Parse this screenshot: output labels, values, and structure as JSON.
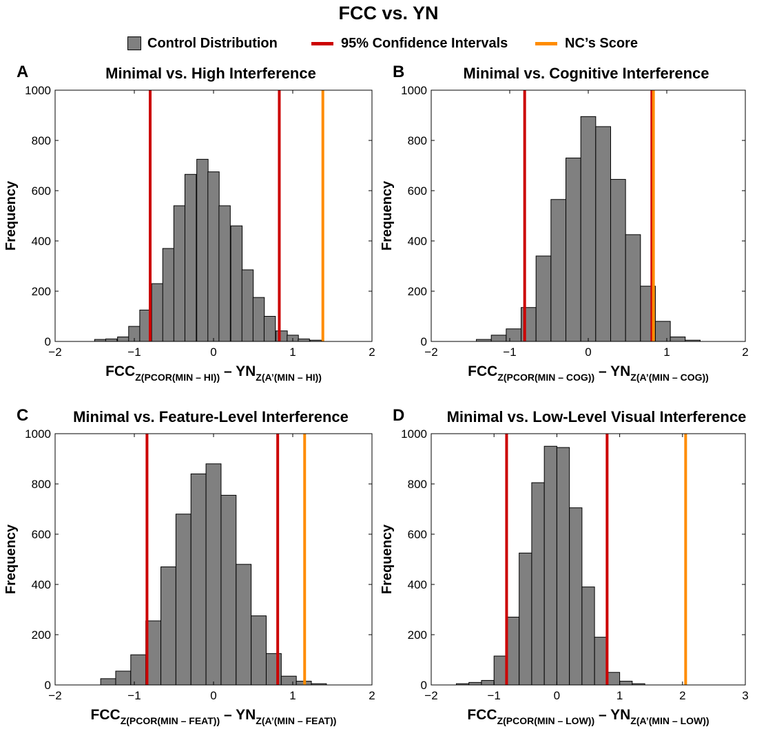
{
  "title": "FCC vs. YN",
  "legend": {
    "control": "Control Distribution",
    "ci": "95% Confidence Intervals",
    "nc": "NC’s Score"
  },
  "colors": {
    "bar_fill": "#808080",
    "bar_edge": "#000000",
    "ci_line": "#cc0000",
    "nc_line": "#ff8c00"
  },
  "chart_data": [
    {
      "panel": "A",
      "type": "bar",
      "title": "Minimal vs. High Interference",
      "ylabel": "Frequency",
      "xlabel": {
        "a": "FCC",
        "a_sub": "Z(PCOR(MIN – HI))",
        "b": " – YN",
        "b_sub": "Z(A’(MIN – HI))"
      },
      "xlim": [
        -2,
        2
      ],
      "ylim": [
        0,
        1000
      ],
      "xticks": [
        -2,
        -1,
        0,
        1,
        2
      ],
      "yticks": [
        0,
        200,
        400,
        600,
        800,
        1000
      ],
      "bin_width": 0.143,
      "bin_centers": [
        -1.43,
        -1.29,
        -1.14,
        -1.0,
        -0.86,
        -0.71,
        -0.57,
        -0.43,
        -0.29,
        -0.14,
        0.0,
        0.14,
        0.29,
        0.43,
        0.57,
        0.71,
        0.86,
        1.0,
        1.14,
        1.29,
        1.43
      ],
      "values": [
        8,
        10,
        18,
        60,
        125,
        230,
        370,
        540,
        665,
        725,
        675,
        540,
        460,
        285,
        175,
        100,
        42,
        25,
        10,
        5,
        0
      ],
      "ci": [
        -0.8,
        0.83
      ],
      "nc_score": 1.38
    },
    {
      "panel": "B",
      "type": "bar",
      "title": "Minimal vs. Cognitive Interference",
      "ylabel": "Frequency",
      "xlabel": {
        "a": "FCC",
        "a_sub": "Z(PCOR(MIN – COG))",
        "b": " – YN",
        "b_sub": "Z(A’(MIN – COG))"
      },
      "xlim": [
        -2,
        2
      ],
      "ylim": [
        0,
        1000
      ],
      "xticks": [
        -2,
        -1,
        0,
        1,
        2
      ],
      "yticks": [
        0,
        200,
        400,
        600,
        800,
        1000
      ],
      "bin_width": 0.19,
      "bin_centers": [
        -1.33,
        -1.14,
        -0.95,
        -0.76,
        -0.57,
        -0.38,
        -0.19,
        0.0,
        0.19,
        0.38,
        0.57,
        0.76,
        0.95,
        1.14,
        1.33
      ],
      "values": [
        8,
        25,
        50,
        135,
        340,
        565,
        730,
        895,
        855,
        645,
        425,
        220,
        80,
        18,
        5
      ],
      "ci": [
        -0.81,
        0.81
      ],
      "nc_score": 0.83
    },
    {
      "panel": "C",
      "type": "bar",
      "title": "Minimal vs. Feature-Level Interference",
      "ylabel": "Frequency",
      "xlabel": {
        "a": "FCC",
        "a_sub": "Z(PCOR(MIN – FEAT))",
        "b": " – YN",
        "b_sub": "Z(A’(MIN – FEAT))"
      },
      "xlim": [
        -2,
        2
      ],
      "ylim": [
        0,
        1000
      ],
      "xticks": [
        -2,
        -1,
        0,
        1,
        2
      ],
      "yticks": [
        0,
        200,
        400,
        600,
        800,
        1000
      ],
      "bin_width": 0.19,
      "bin_centers": [
        -1.33,
        -1.14,
        -0.95,
        -0.76,
        -0.57,
        -0.38,
        -0.19,
        0.0,
        0.19,
        0.38,
        0.57,
        0.76,
        0.95,
        1.14,
        1.33
      ],
      "values": [
        25,
        55,
        120,
        255,
        470,
        680,
        840,
        880,
        755,
        480,
        275,
        125,
        35,
        15,
        5
      ],
      "ci": [
        -0.84,
        0.81
      ],
      "nc_score": 1.15
    },
    {
      "panel": "D",
      "type": "bar",
      "title": "Minimal vs. Low-Level Visual Interference",
      "ylabel": "Frequency",
      "xlabel": {
        "a": "FCC",
        "a_sub": "Z(PCOR(MIN – LOW))",
        "b": " – YN",
        "b_sub": "Z(A’(MIN – LOW))"
      },
      "xlim": [
        -2,
        3
      ],
      "ylim": [
        0,
        1000
      ],
      "xticks": [
        -2,
        -1,
        0,
        1,
        2,
        3
      ],
      "yticks": [
        0,
        200,
        400,
        600,
        800,
        1000
      ],
      "bin_width": 0.2,
      "bin_centers": [
        -1.5,
        -1.3,
        -1.1,
        -0.9,
        -0.7,
        -0.5,
        -0.3,
        -0.1,
        0.1,
        0.3,
        0.5,
        0.7,
        0.9,
        1.1,
        1.3
      ],
      "values": [
        5,
        10,
        18,
        115,
        270,
        525,
        805,
        950,
        945,
        705,
        390,
        190,
        50,
        15,
        5
      ],
      "ci": [
        -0.8,
        0.8
      ],
      "nc_score": 2.05
    }
  ]
}
